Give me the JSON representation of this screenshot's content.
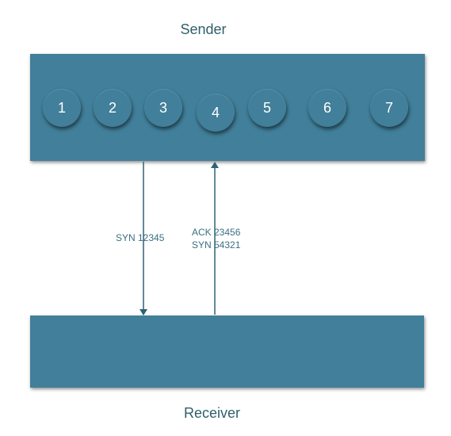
{
  "sender": {
    "title": "Sender",
    "slots": [
      "1",
      "2",
      "3",
      "4",
      "5",
      "6",
      "7"
    ]
  },
  "receiver": {
    "title": "Receiver"
  },
  "messages": {
    "to_receiver": [
      "SYN 12345"
    ],
    "to_sender": [
      "ACK 23456",
      "SYN 54321"
    ]
  },
  "colors": {
    "box": "#417f9a",
    "arrow": "#2f6275",
    "text": "#2f5f6e"
  }
}
